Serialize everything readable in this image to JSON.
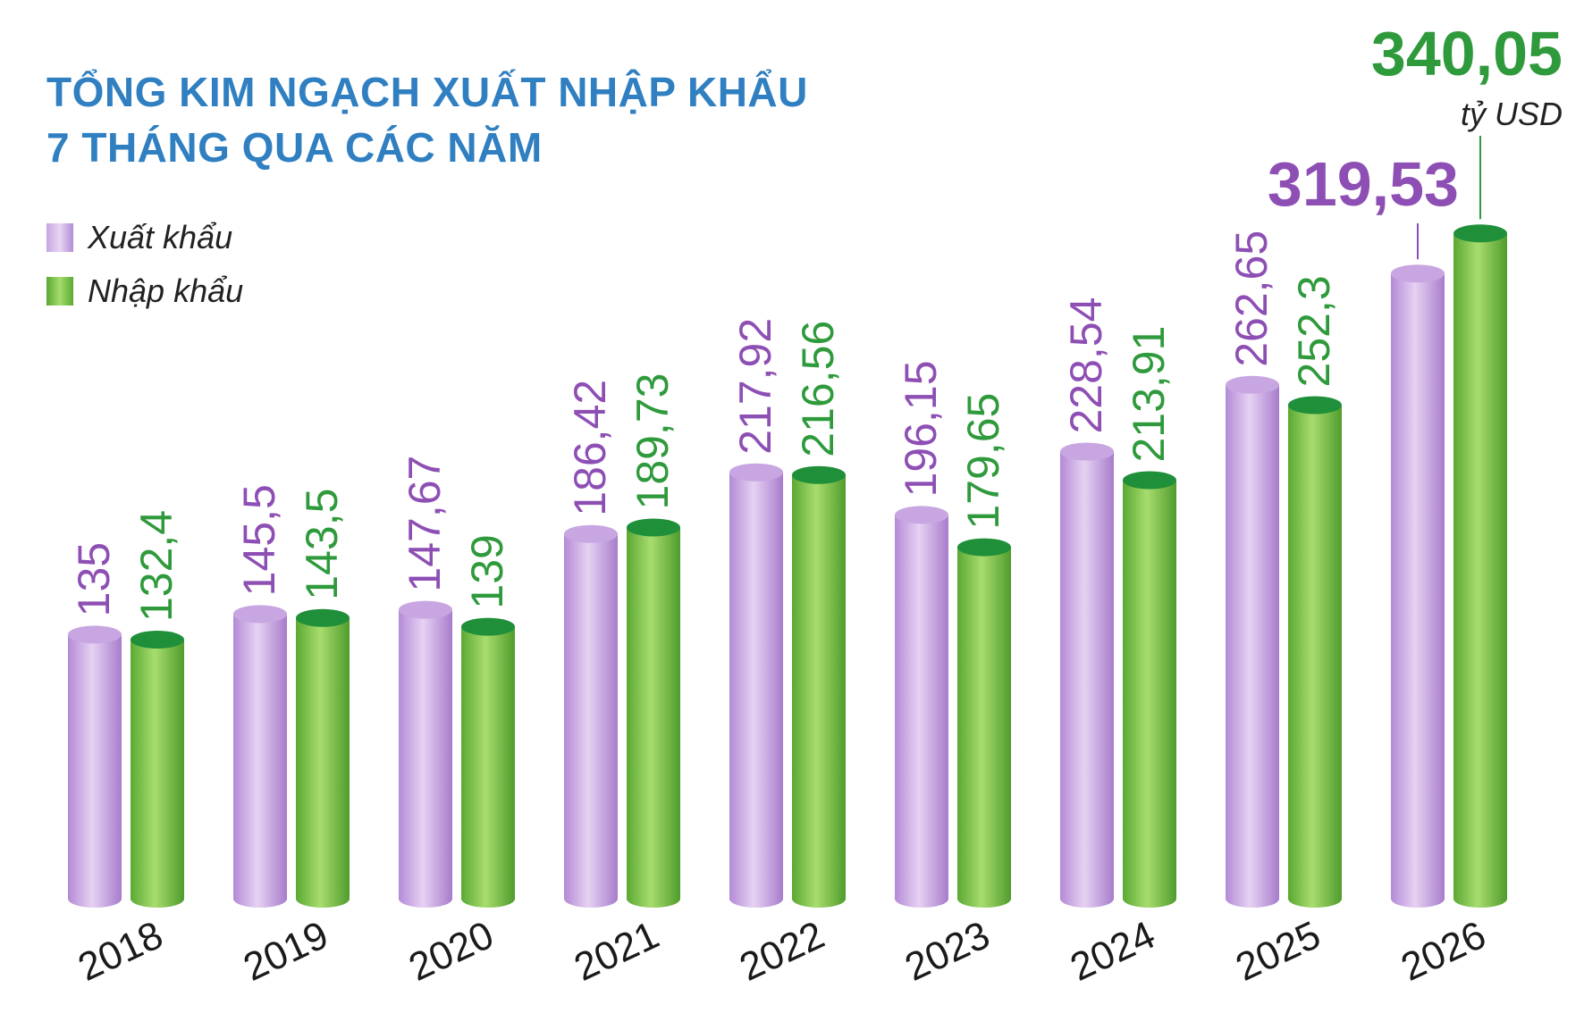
{
  "chart_data": {
    "type": "bar",
    "title": [
      "TỔNG KIM NGẠCH XUẤT NHẬP KHẨU",
      "7 THÁNG QUA CÁC NĂM"
    ],
    "categories": [
      "2018",
      "2019",
      "2020",
      "2021",
      "2022",
      "2023",
      "2024",
      "2025",
      "2026"
    ],
    "series": [
      {
        "name": "Xuất khẩu",
        "color": "#b48ad6",
        "label_color": "#8e4fb5",
        "values": [
          135,
          145.5,
          147.67,
          186.42,
          217.92,
          196.15,
          228.54,
          262.65,
          319.53
        ],
        "labels": [
          "135",
          "145,5",
          "147,67",
          "186,42",
          "217,92",
          "196,15",
          "228,54",
          "262,65",
          "319,53"
        ]
      },
      {
        "name": "Nhập khẩu",
        "color": "#6dbd45",
        "label_color": "#2f9a3c",
        "values": [
          132.4,
          143.5,
          139,
          189.73,
          216.56,
          179.65,
          213.91,
          252.3,
          340.05
        ],
        "labels": [
          "132,4",
          "143,5",
          "139",
          "189,73",
          "216,56",
          "179,65",
          "213,91",
          "252,3",
          "340,05"
        ]
      }
    ],
    "unit": "tỷ USD",
    "legend": "top-left",
    "grid": false
  }
}
